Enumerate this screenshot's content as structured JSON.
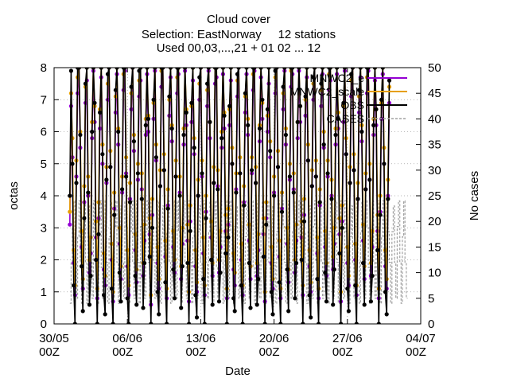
{
  "chart_data": {
    "type": "line",
    "title": [
      "Cloud cover",
      "Selection: EastNorway     12 stations",
      "Used 00,03,...,21 + 01 02 ... 12"
    ],
    "xlabel": "Date",
    "ylabel": "octas",
    "y2label": "No cases",
    "ylim": [
      0,
      8
    ],
    "y2lim": [
      0,
      50
    ],
    "yticks": [
      0,
      1,
      2,
      3,
      4,
      5,
      6,
      7,
      8
    ],
    "y2ticks": [
      0,
      5,
      10,
      15,
      20,
      25,
      30,
      35,
      40,
      45,
      50
    ],
    "xlim": [
      "30/05 00Z",
      "04/07 00Z"
    ],
    "xticks": [
      {
        "line1": "30/05",
        "line2": "00Z"
      },
      {
        "line1": "06/06",
        "line2": "00Z"
      },
      {
        "line1": "13/06",
        "line2": "00Z"
      },
      {
        "line1": "20/06",
        "line2": "00Z"
      },
      {
        "line1": "27/06",
        "line2": "00Z"
      },
      {
        "line1": "04/07",
        "line2": "00Z"
      }
    ],
    "data_period": {
      "start": "31/05 12Z",
      "end": "01/07 12Z",
      "step_hours": 3
    },
    "grid": true,
    "legend_position": "top-right",
    "series": [
      {
        "name": "MNWC2_e",
        "color": "#9400d3",
        "axis": "left",
        "style": "solid",
        "marker": "filled-circle",
        "values": [
          3.1,
          6.8,
          5.2,
          1.9,
          0.9,
          4.6,
          7.2,
          8.0,
          5.5,
          2.4,
          1.1,
          3.8,
          6.9,
          7.6,
          4.0,
          1.6,
          2.2,
          5.8,
          7.9,
          6.3,
          2.7,
          0.8,
          3.3,
          6.1,
          7.7,
          5.0,
          1.7,
          1.2,
          4.4,
          7.0,
          8.0,
          4.9,
          2.0,
          0.7,
          3.6,
          6.6,
          7.8,
          5.6,
          2.5,
          1.4,
          4.1,
          7.3,
          7.9,
          4.7,
          1.8,
          0.9,
          3.9,
          6.7,
          8.0,
          5.4,
          2.3,
          1.3,
          4.5,
          7.1,
          7.6,
          4.2,
          1.5,
          2.6,
          5.9,
          7.8,
          6.0,
          2.8,
          0.6,
          3.4,
          6.4,
          7.9,
          5.1,
          1.9,
          1.1,
          4.3,
          7.4,
          8.0,
          4.8,
          2.1,
          0.8,
          3.7,
          6.5,
          7.7,
          5.7,
          2.4,
          1.6,
          4.6,
          7.2,
          7.8,
          4.1,
          1.4,
          2.5,
          5.6,
          7.9,
          6.2,
          2.6,
          0.7,
          3.2,
          6.3,
          7.6,
          5.3,
          1.8,
          1.0,
          4.0,
          7.0,
          8.0,
          4.6,
          2.2,
          0.9,
          3.5,
          6.8,
          7.9,
          5.8,
          2.7,
          1.5,
          4.4,
          7.5,
          7.7,
          4.3,
          1.6,
          2.4,
          5.5,
          7.8,
          6.1,
          2.9,
          0.8,
          3.1,
          6.2,
          7.6,
          5.0,
          1.7,
          1.2,
          4.2,
          7.1,
          8.0,
          4.7,
          2.0,
          0.9,
          3.8,
          6.6,
          7.8,
          5.9,
          2.6,
          1.4,
          4.7,
          7.3,
          7.9,
          4.4,
          1.5,
          2.3,
          5.7,
          7.7,
          6.4,
          2.8,
          0.7,
          3.3,
          6.0,
          7.5,
          5.2,
          1.9,
          1.1,
          4.1,
          7.2,
          8.0,
          4.9,
          2.1,
          0.8,
          3.6,
          6.7,
          7.9,
          5.6,
          2.5,
          1.3,
          4.5,
          7.4,
          7.8,
          4.2,
          1.6,
          2.6,
          5.8,
          7.9,
          6.3,
          2.7,
          0.9,
          3.4,
          6.5,
          7.7,
          5.1,
          1.8,
          1.0,
          4.3,
          7.0,
          8.0,
          4.6,
          2.2,
          0.8,
          3.7,
          6.8,
          7.8,
          5.5,
          2.4,
          1.5,
          4.6,
          7.3,
          7.6,
          4.0,
          1.7,
          2.5,
          5.6,
          7.8,
          6.1,
          2.8,
          0.7,
          3.2,
          6.3,
          7.9,
          5.3,
          1.9,
          1.2,
          4.4,
          7.1,
          8.0,
          4.8,
          2.0,
          0.9,
          3.9,
          6.6,
          7.7,
          5.7,
          2.6,
          1.4,
          4.2,
          7.2,
          7.9,
          4.5,
          1.5,
          2.4,
          5.9,
          7.6,
          6.2,
          2.9,
          0.8,
          3.5,
          6.4,
          7.8,
          5.0,
          1.8,
          1.1,
          4.0,
          6.9
        ]
      },
      {
        "name": "MNWC2_scale",
        "color": "#e69f00",
        "axis": "left",
        "style": "solid",
        "marker": "filled-circle",
        "values": [
          3.5,
          7.2,
          5.8,
          2.3,
          1.2,
          5.1,
          7.7,
          8.0,
          6.0,
          2.9,
          1.4,
          4.3,
          7.4,
          8.0,
          4.6,
          2.0,
          2.7,
          6.3,
          8.0,
          6.8,
          3.2,
          1.1,
          3.8,
          6.7,
          8.0,
          5.6,
          2.2,
          1.5,
          4.9,
          7.5,
          8.0,
          5.4,
          2.5,
          1.0,
          4.1,
          7.1,
          8.0,
          6.1,
          3.0,
          1.8,
          4.6,
          7.8,
          8.0,
          5.2,
          2.3,
          1.2,
          4.4,
          7.2,
          8.0,
          5.9,
          2.8,
          1.7,
          5.0,
          7.6,
          8.0,
          4.7,
          1.9,
          3.1,
          6.4,
          8.0,
          6.5,
          3.3,
          0.9,
          3.9,
          6.9,
          8.0,
          5.6,
          2.4,
          1.4,
          4.8,
          7.9,
          8.0,
          5.3,
          2.6,
          1.1,
          4.2,
          7.0,
          8.0,
          6.2,
          2.9,
          2.0,
          5.1,
          7.7,
          8.0,
          4.6,
          1.8,
          3.0,
          6.1,
          8.0,
          6.7,
          3.1,
          1.0,
          3.7,
          6.8,
          8.0,
          5.8,
          2.3,
          1.3,
          4.5,
          7.5,
          8.0,
          5.1,
          2.7,
          1.2,
          4.0,
          7.3,
          8.0,
          6.3,
          3.2,
          1.9,
          4.9,
          8.0,
          8.0,
          4.8,
          2.0,
          2.9,
          6.0,
          8.0,
          6.6,
          3.4,
          1.1,
          3.6,
          6.7,
          8.0,
          5.5,
          2.2,
          1.6,
          4.7,
          7.6,
          8.0,
          5.2,
          2.5,
          1.2,
          4.3,
          7.1,
          8.0,
          6.4,
          3.1,
          1.8,
          5.2,
          7.8,
          8.0,
          4.9,
          1.9,
          2.8,
          6.2,
          8.0,
          6.9,
          3.3,
          1.0,
          3.8,
          6.5,
          8.0,
          5.7,
          2.4,
          1.4,
          4.6,
          7.7,
          8.0,
          5.4,
          2.6,
          1.1,
          4.1,
          7.2,
          8.0,
          6.1,
          3.0,
          1.7,
          5.0,
          7.9,
          8.0,
          4.7,
          2.0,
          3.1,
          6.3,
          8.0,
          6.8,
          3.2,
          1.2,
          3.9,
          7.0,
          8.0,
          5.6,
          2.3,
          1.3,
          4.8,
          7.5,
          8.0,
          5.1,
          2.7,
          1.1,
          4.2,
          7.3,
          8.0,
          6.0,
          2.9,
          1.9,
          5.1,
          7.8,
          8.0,
          4.5,
          2.1,
          3.0,
          6.1,
          8.0,
          6.6,
          3.3,
          1.0,
          3.7,
          6.8,
          8.0,
          5.8,
          2.4,
          1.5,
          4.9,
          7.6,
          8.0,
          5.3,
          2.5,
          1.2,
          4.4,
          7.1,
          8.0,
          6.2,
          3.1,
          1.8,
          4.7,
          7.7,
          8.0,
          5.0,
          1.9,
          2.9,
          6.4,
          8.0,
          6.7,
          3.4,
          1.1,
          4.0,
          6.9,
          8.0,
          5.5,
          2.3,
          1.4,
          4.5,
          7.4
        ]
      },
      {
        "name": "OBS",
        "color": "#000000",
        "axis": "left",
        "style": "solid",
        "marker": "filled-circle",
        "values": [
          4.0,
          7.9,
          5.0,
          1.2,
          0.0,
          4.4,
          8.0,
          8.0,
          5.9,
          1.8,
          0.4,
          3.3,
          7.5,
          8.0,
          4.1,
          0.6,
          1.5,
          6.0,
          8.0,
          6.9,
          2.0,
          0.0,
          2.8,
          6.6,
          8.0,
          5.3,
          0.9,
          0.3,
          4.5,
          7.8,
          8.0,
          4.9,
          1.1,
          0.0,
          3.4,
          7.3,
          8.0,
          6.0,
          1.6,
          0.7,
          4.2,
          8.0,
          8.0,
          4.6,
          0.8,
          0.0,
          3.8,
          7.4,
          8.0,
          5.7,
          1.5,
          0.6,
          4.7,
          7.9,
          8.0,
          3.9,
          0.5,
          1.9,
          6.2,
          8.0,
          6.4,
          2.1,
          0.0,
          3.0,
          7.0,
          8.0,
          5.2,
          1.0,
          0.3,
          4.3,
          8.0,
          8.0,
          4.8,
          1.3,
          0.0,
          3.6,
          7.1,
          8.0,
          6.1,
          1.7,
          0.8,
          4.6,
          8.0,
          8.0,
          4.0,
          0.5,
          1.8,
          5.9,
          8.0,
          6.6,
          1.9,
          0.0,
          2.9,
          6.9,
          8.0,
          5.5,
          0.9,
          0.2,
          4.0,
          7.7,
          8.0,
          4.7,
          1.4,
          0.0,
          3.3,
          7.5,
          8.0,
          6.3,
          2.0,
          0.6,
          4.4,
          8.0,
          8.0,
          4.2,
          0.7,
          1.6,
          5.8,
          8.0,
          6.5,
          2.2,
          0.0,
          2.7,
          6.8,
          8.0,
          5.0,
          0.8,
          0.4,
          4.1,
          7.8,
          8.0,
          4.7,
          1.2,
          0.0,
          3.7,
          7.2,
          8.0,
          6.2,
          1.9,
          0.5,
          4.8,
          8.0,
          8.0,
          4.4,
          0.6,
          1.4,
          6.1,
          8.0,
          7.0,
          2.1,
          0.0,
          3.1,
          6.7,
          8.0,
          5.4,
          1.0,
          0.3,
          4.0,
          7.9,
          8.0,
          4.9,
          1.3,
          0.0,
          3.5,
          7.4,
          8.0,
          5.9,
          1.7,
          0.4,
          4.6,
          8.0,
          8.0,
          4.1,
          0.8,
          1.9,
          6.3,
          8.0,
          6.8,
          2.0,
          0.0,
          3.2,
          7.1,
          8.0,
          5.1,
          0.9,
          0.2,
          4.3,
          7.7,
          8.0,
          4.6,
          1.4,
          0.0,
          3.8,
          7.5,
          8.0,
          5.6,
          1.6,
          0.7,
          4.7,
          8.0,
          8.0,
          3.9,
          0.6,
          1.7,
          5.9,
          8.0,
          6.4,
          2.2,
          0.0,
          3.0,
          6.9,
          8.0,
          5.3,
          1.1,
          0.4,
          4.4,
          7.8,
          8.0,
          4.8,
          1.2,
          0.0,
          3.9,
          7.3,
          8.0,
          6.0,
          1.9,
          0.6,
          4.2,
          8.0,
          8.0,
          4.5,
          0.7,
          1.5,
          6.2,
          8.0,
          6.7,
          2.3,
          0.0,
          3.4,
          7.0,
          8.0,
          5.0,
          1.0,
          0.3,
          3.9,
          7.6
        ]
      },
      {
        "name": "CASES",
        "color": "#a0a0a0",
        "axis": "right",
        "style": "dashed",
        "marker": "none",
        "values": [
          4,
          12,
          19,
          24,
          12,
          5,
          17,
          24,
          12,
          4,
          18,
          24,
          12,
          4,
          19,
          23,
          12,
          5,
          24,
          18,
          12,
          4,
          19,
          24,
          11,
          5,
          18,
          24,
          12,
          4,
          17,
          24,
          12,
          5,
          19,
          24,
          12,
          4,
          18,
          23,
          12,
          5,
          24,
          19,
          12,
          4,
          18,
          24,
          12,
          5,
          17,
          24,
          12,
          4,
          19,
          24,
          11,
          5,
          18,
          24,
          12,
          4,
          24,
          18,
          12,
          5,
          19,
          24,
          12,
          4,
          17,
          23,
          12,
          5,
          18,
          24,
          12,
          4,
          19,
          24,
          12,
          5,
          24,
          18,
          11,
          4,
          18,
          24,
          12,
          5,
          19,
          24,
          12,
          4,
          17,
          24,
          12,
          5,
          18,
          23,
          12,
          4,
          24,
          19,
          12,
          5,
          18,
          24,
          12,
          4,
          19,
          24,
          11,
          5,
          17,
          24,
          12,
          4,
          18,
          24,
          12,
          5,
          24,
          18,
          12,
          4,
          19,
          23,
          12,
          5,
          18,
          24,
          12,
          4,
          17,
          24,
          12,
          5,
          19,
          24,
          11,
          4,
          24,
          18,
          12,
          5,
          18,
          24,
          12,
          4,
          19,
          24,
          12,
          5,
          17,
          23,
          12,
          4,
          18,
          24,
          12,
          5,
          24,
          19,
          12,
          4,
          19,
          24,
          12,
          5,
          18,
          24,
          11,
          4,
          17,
          24,
          12,
          5,
          24,
          18,
          12,
          4,
          18,
          23,
          12,
          5,
          19,
          24,
          12,
          4,
          17,
          24,
          12,
          5,
          24,
          19,
          12,
          4,
          18,
          24,
          11,
          5,
          19,
          24,
          12,
          4,
          18,
          24,
          12,
          5,
          24,
          18,
          12,
          4,
          17,
          23,
          12,
          5,
          19,
          24,
          12,
          4,
          18,
          24,
          12,
          5,
          24,
          19,
          11,
          4,
          18,
          24,
          12,
          5,
          19,
          24,
          12,
          4,
          17,
          24,
          12,
          5,
          24,
          18,
          12,
          4,
          18,
          23,
          12,
          5,
          19,
          24,
          12,
          4,
          17,
          24,
          12,
          5
        ]
      }
    ]
  }
}
